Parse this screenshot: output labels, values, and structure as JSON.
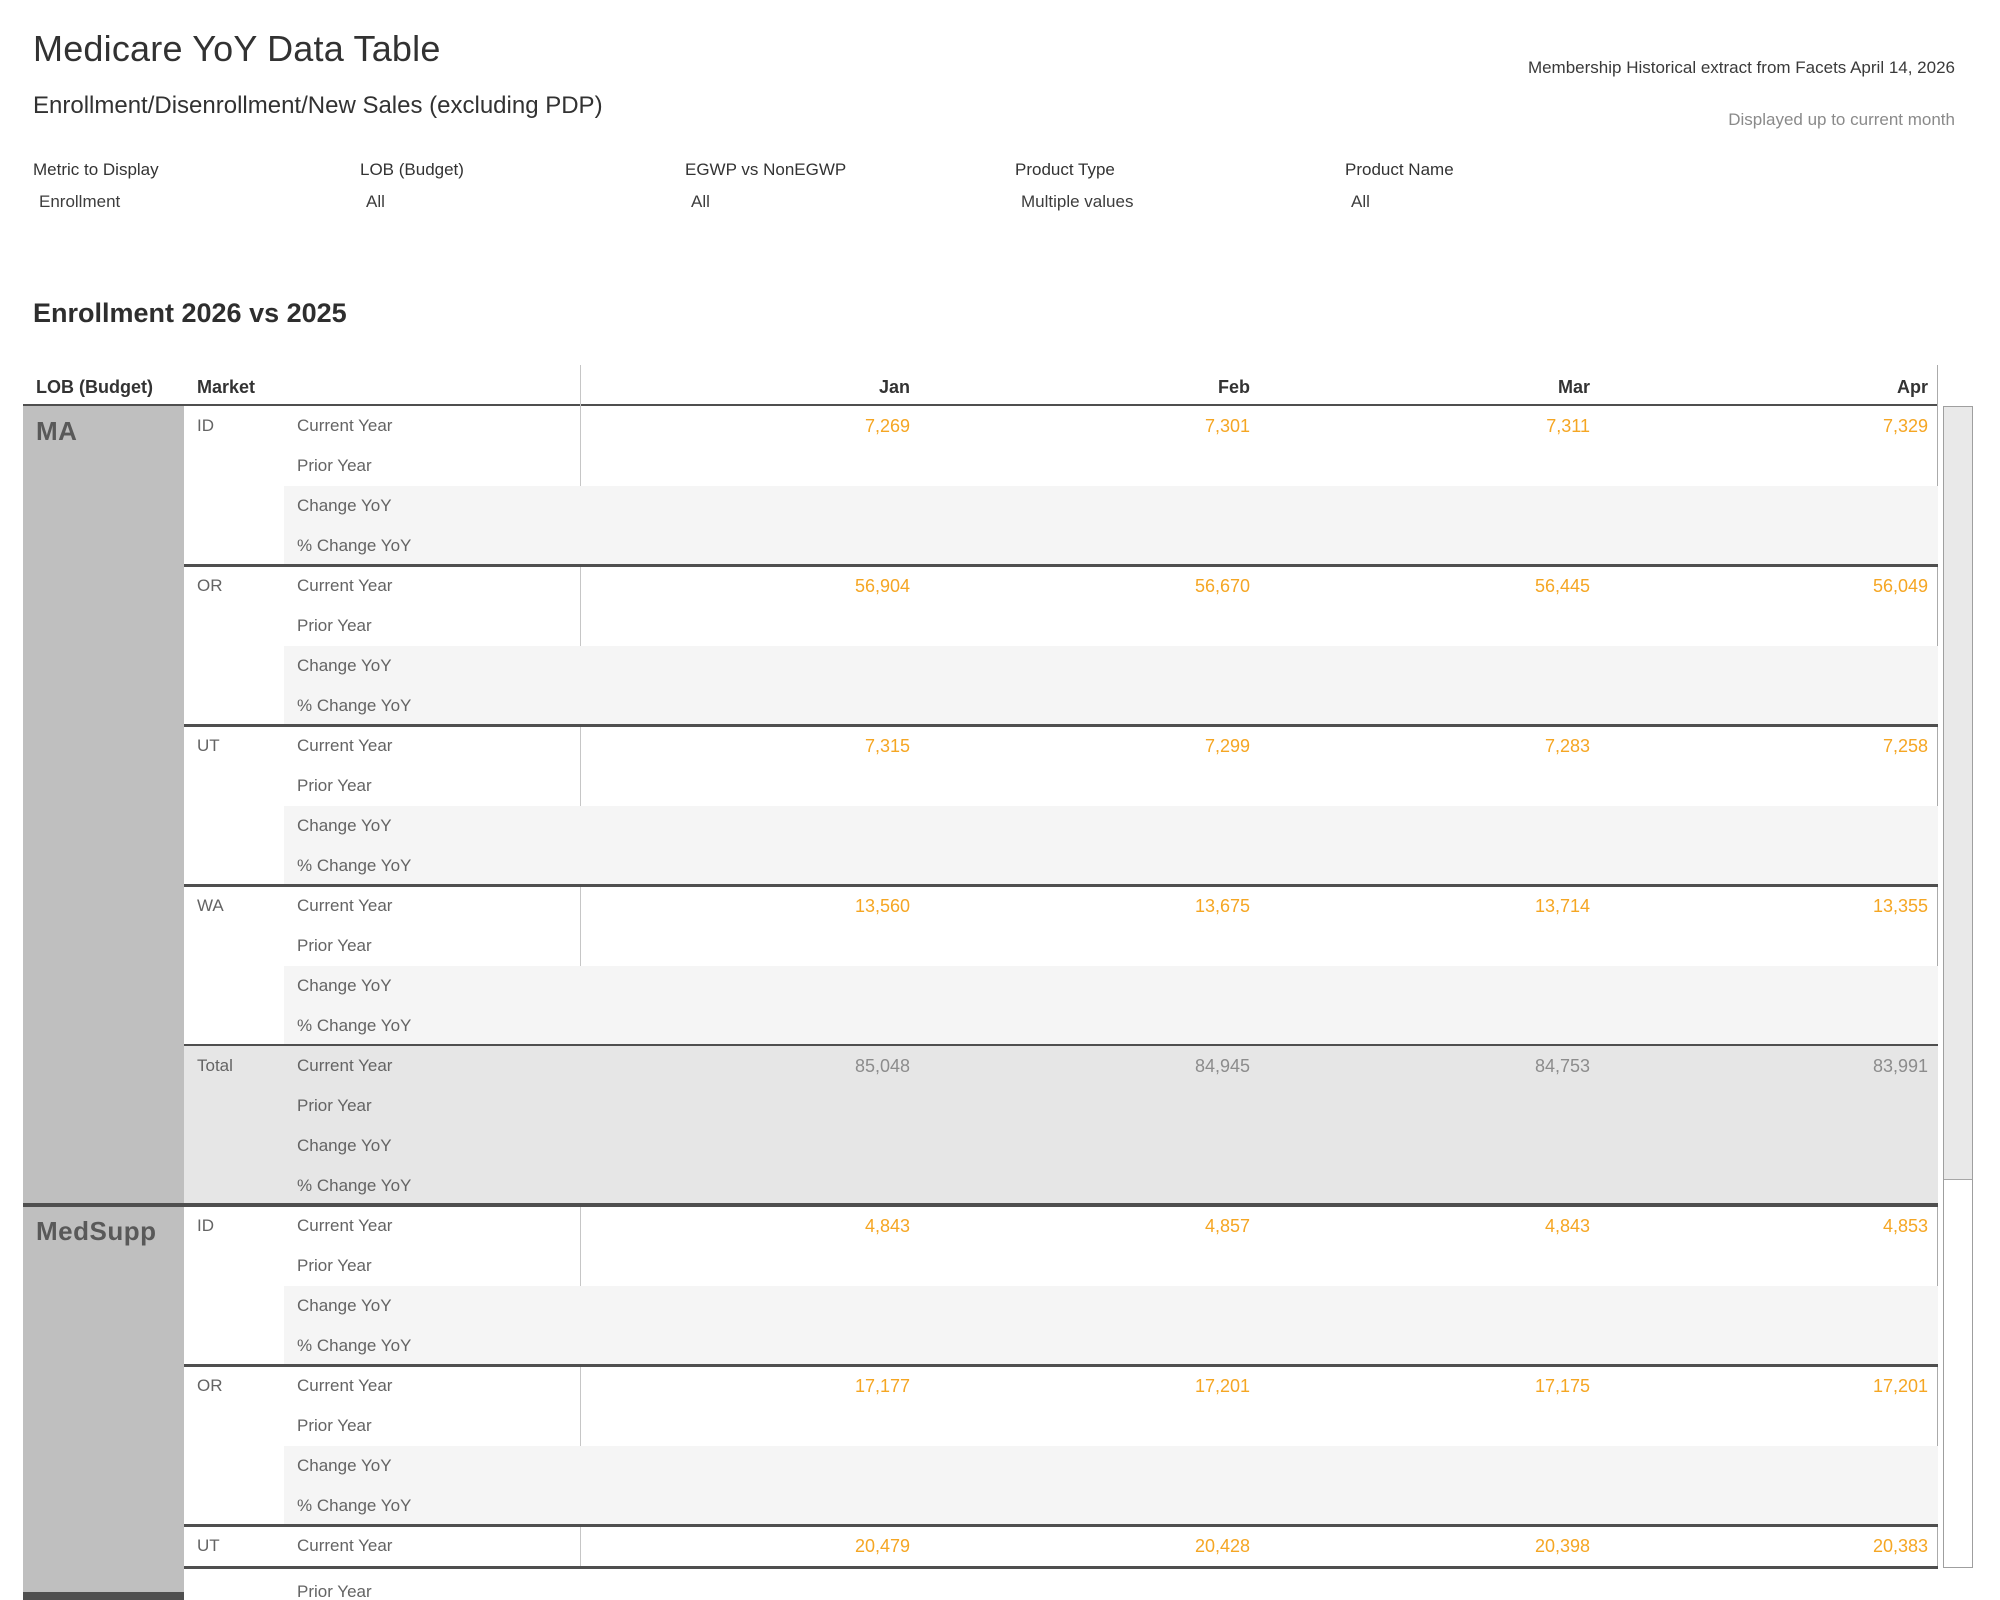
{
  "header": {
    "title": "Medicare YoY Data Table",
    "subtitle": "Enrollment/Disenrollment/New Sales (excluding PDP)",
    "extract_note": "Membership Historical extract from Facets April 14, 2026",
    "display_note": "Displayed up to current month"
  },
  "filters": [
    {
      "label": "Metric to Display",
      "value": "Enrollment"
    },
    {
      "label": "LOB (Budget)",
      "value": "All"
    },
    {
      "label": "EGWP vs NonEGWP",
      "value": "All"
    },
    {
      "label": "Product Type",
      "value": "Multiple values"
    },
    {
      "label": "Product Name",
      "value": "All"
    }
  ],
  "section_title": "Enrollment 2026 vs 2025",
  "table": {
    "lob_header": "LOB (Budget)",
    "market_header": "Market",
    "months": [
      "Jan",
      "Feb",
      "Mar",
      "Apr"
    ],
    "metric_labels": [
      "Current Year",
      "Prior Year",
      "Change YoY",
      "% Change YoY"
    ],
    "groups": [
      {
        "lob": "MA",
        "blocks": [
          {
            "market": "ID",
            "current_year": [
              "7,269",
              "7,301",
              "7,311",
              "7,329"
            ]
          },
          {
            "market": "OR",
            "current_year": [
              "56,904",
              "56,670",
              "56,445",
              "56,049"
            ]
          },
          {
            "market": "UT",
            "current_year": [
              "7,315",
              "7,299",
              "7,283",
              "7,258"
            ]
          },
          {
            "market": "WA",
            "current_year": [
              "13,560",
              "13,675",
              "13,714",
              "13,355"
            ]
          },
          {
            "market": "Total",
            "total": true,
            "current_year": [
              "85,048",
              "84,945",
              "84,753",
              "83,991"
            ]
          }
        ]
      },
      {
        "lob": "MedSupp",
        "blocks": [
          {
            "market": "ID",
            "current_year": [
              "4,843",
              "4,857",
              "4,843",
              "4,853"
            ]
          },
          {
            "market": "OR",
            "current_year": [
              "17,177",
              "17,201",
              "17,175",
              "17,201"
            ]
          },
          {
            "market": "UT",
            "partial": true,
            "current_year": [
              "20,479",
              "20,428",
              "20,398",
              "20,383"
            ]
          }
        ]
      }
    ]
  },
  "colors": {
    "value_orange": "#F5A623",
    "total_value_gray": "#8C8C8C",
    "lob_cell_bg": "#BFBFBF",
    "total_band_bg": "#E6E6E6",
    "change_band_bg": "#F5F5F5",
    "separator_dark": "#4F4F4F"
  }
}
